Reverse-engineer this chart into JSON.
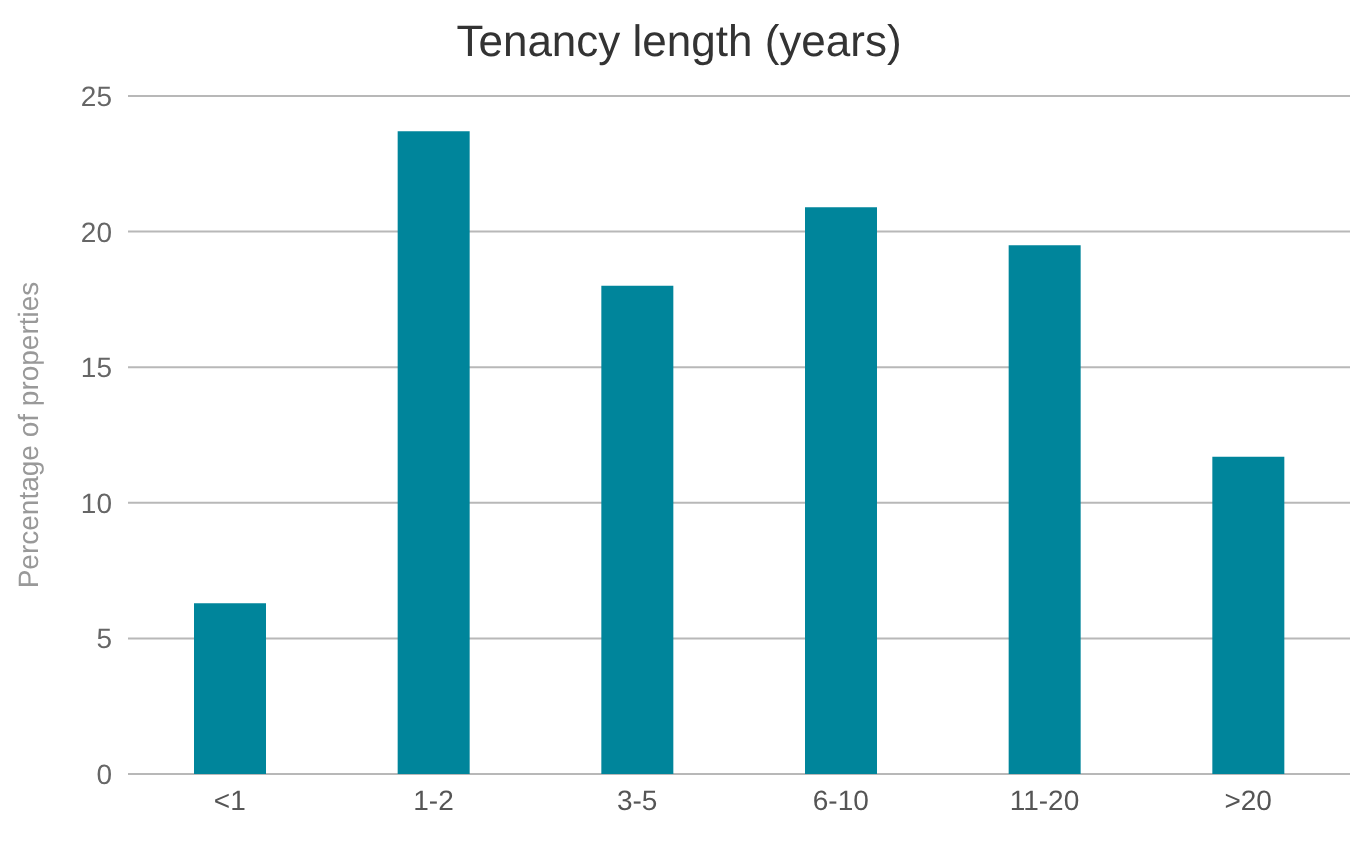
{
  "chart_data": {
    "type": "bar",
    "title": "Tenancy length (years)",
    "ylabel": "Percentage of properties",
    "categories": [
      "<1",
      "1-2",
      "3-5",
      "6-10",
      "11-20",
      ">20"
    ],
    "values": [
      6.3,
      23.7,
      18.0,
      20.9,
      19.5,
      11.7
    ],
    "color": "#00859b",
    "ylim": [
      0,
      25
    ],
    "yticks": [
      0,
      5,
      10,
      15,
      20,
      25
    ],
    "grid": "y"
  }
}
